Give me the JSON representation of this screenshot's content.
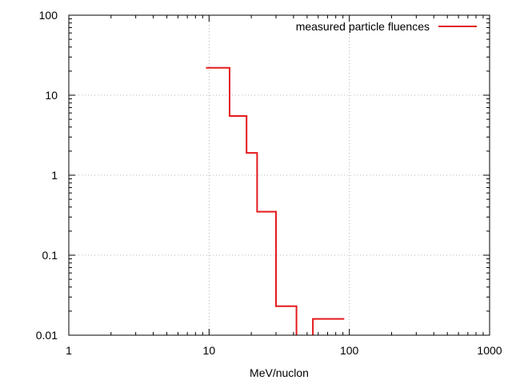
{
  "chart_data": {
    "type": "line",
    "title": "",
    "xlabel": "MeV/nuclon",
    "ylabel": "",
    "xscale": "log",
    "yscale": "log",
    "xlim": [
      1,
      1000
    ],
    "ylim": [
      0.01,
      100
    ],
    "grid": true,
    "legend_position": "top-right",
    "x_tick_labels": [
      "1",
      "10",
      "100",
      "1000"
    ],
    "y_tick_labels": [
      "0.01",
      "0.1",
      "1",
      "10",
      "100"
    ],
    "series": [
      {
        "name": "measured particle fluences",
        "color": "#e41a1c",
        "style": "step",
        "segments": [
          [
            {
              "x0": 9.5,
              "x1": 14,
              "y": 22
            },
            {
              "x0": 14,
              "x1": 18.5,
              "y": 5.5
            },
            {
              "x0": 18.5,
              "x1": 22,
              "y": 1.9
            },
            {
              "x0": 22,
              "x1": 30,
              "y": 0.35
            },
            {
              "x0": 30,
              "x1": 42,
              "y": 0.023
            },
            {
              "x0": 42,
              "x1": 42,
              "y": 0.01
            }
          ],
          [
            {
              "x0": 55,
              "x1": 55,
              "y": 0.01
            },
            {
              "x0": 55,
              "x1": 92,
              "y": 0.016
            }
          ]
        ]
      }
    ]
  }
}
